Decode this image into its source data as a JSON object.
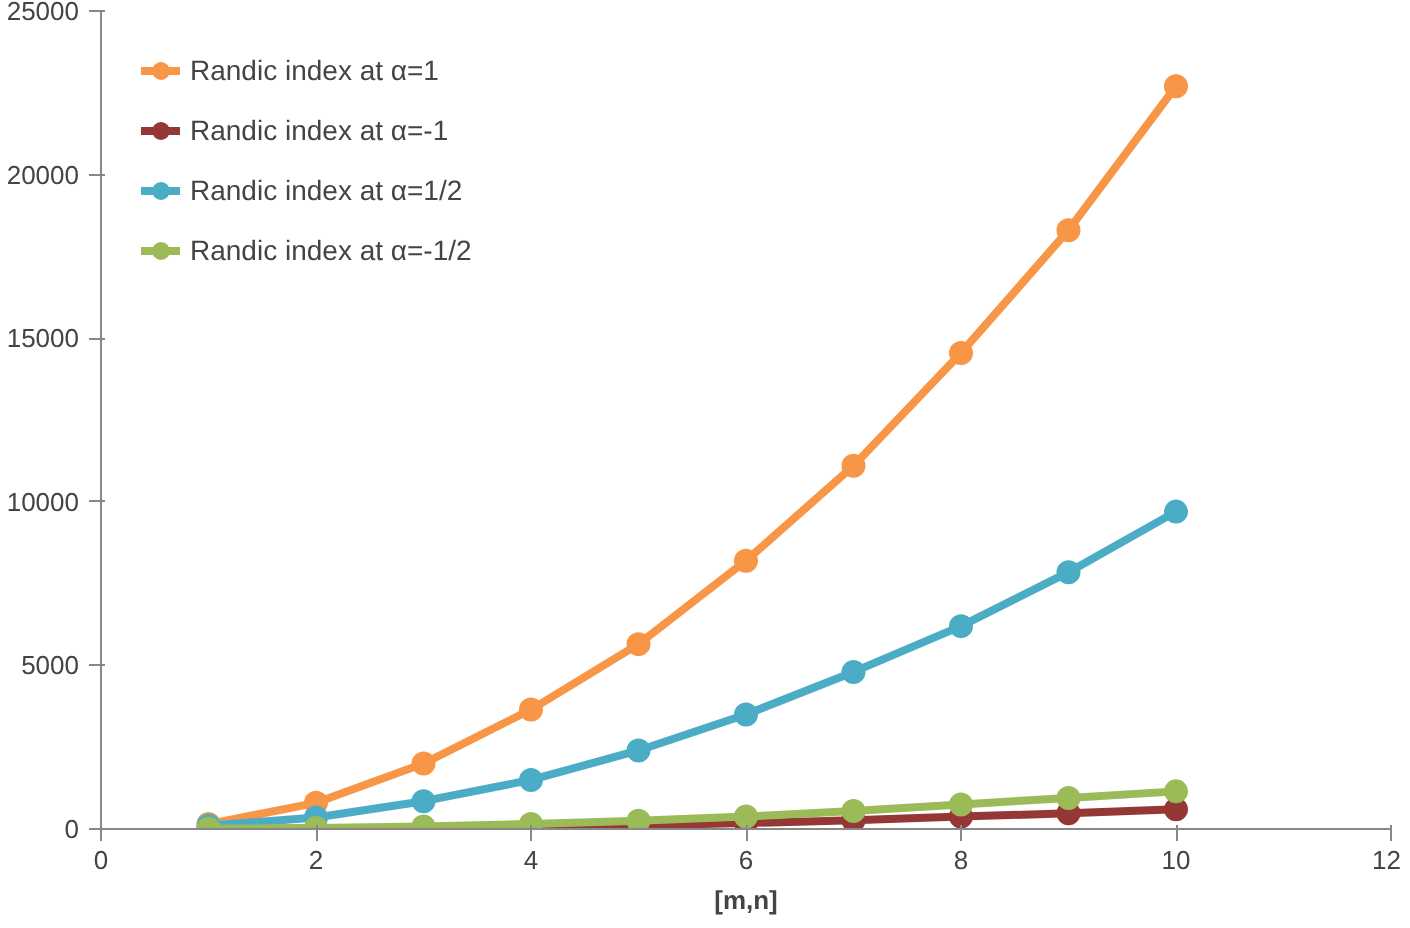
{
  "chart_data": {
    "type": "line",
    "xlabel": "[m,n]",
    "x": [
      1,
      2,
      3,
      4,
      5,
      6,
      7,
      8,
      9,
      10
    ],
    "xlim": [
      0,
      12
    ],
    "xticks": [
      0,
      2,
      4,
      6,
      8,
      10,
      12
    ],
    "ylim": [
      0,
      25000
    ],
    "yticks": [
      0,
      5000,
      10000,
      15000,
      20000,
      25000
    ],
    "grid": false,
    "legend": "top left",
    "marker": "circle",
    "line_style": "solid",
    "series": [
      {
        "name": "Randic index at α=1",
        "color": "#f79646",
        "values": [
          150,
          800,
          2000,
          3650,
          5650,
          8200,
          11100,
          14550,
          18300,
          22700
        ]
      },
      {
        "name": "Randic index at α=-1",
        "color": "#953735",
        "values": [
          5,
          15,
          30,
          60,
          110,
          180,
          270,
          380,
          480,
          600
        ]
      },
      {
        "name": "Randic index at α=1/2",
        "color": "#4bacc6",
        "values": [
          100,
          350,
          850,
          1500,
          2400,
          3500,
          4800,
          6200,
          7850,
          9700
        ]
      },
      {
        "name": "Randic index at α=-1/2",
        "color": "#9bbb59",
        "values": [
          10,
          30,
          80,
          150,
          250,
          380,
          550,
          750,
          950,
          1150
        ]
      }
    ]
  }
}
